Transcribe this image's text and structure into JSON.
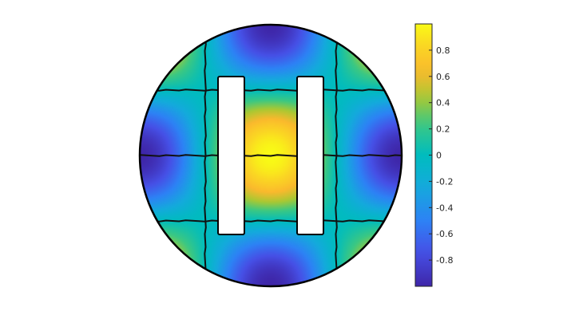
{
  "chart_data": {
    "type": "heatmap",
    "title": "",
    "xlabel": "",
    "ylabel": "",
    "domain": "circular disk with two rectangular holes",
    "field": "cos(pi*x) * cos(pi*y) on the unit disk (checkerboard pattern of lobes)",
    "grid": false,
    "colormap": "parula",
    "colorbar": {
      "placement": "right",
      "range": [
        -1,
        1
      ],
      "ticks": [
        -0.8,
        -0.6,
        -0.4,
        -0.2,
        0,
        0.2,
        0.4,
        0.6,
        0.8
      ],
      "tick_labels": [
        "-0.8",
        "-0.6",
        "-0.4",
        "-0.2",
        "0",
        "0.2",
        "0.4",
        "0.6",
        "0.8"
      ]
    },
    "colors": {
      "low": "#3e26a8",
      "high": "#f9fb15",
      "outline": "#000000",
      "hole_fill": "#ffffff"
    }
  }
}
